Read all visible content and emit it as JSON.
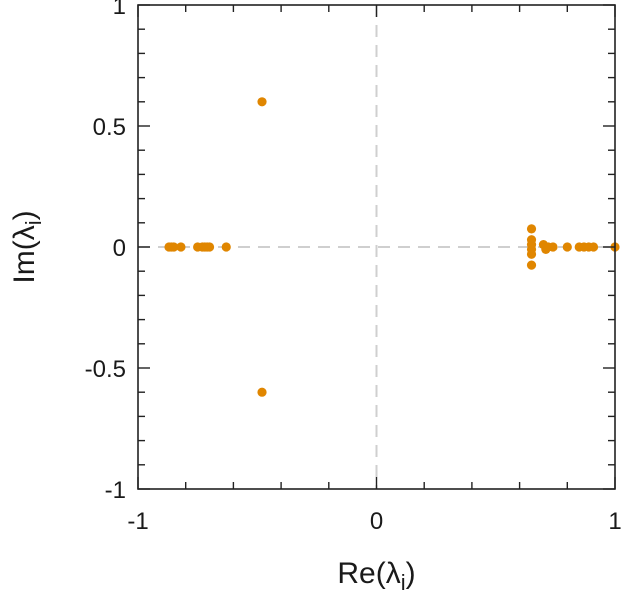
{
  "chart_data": {
    "type": "scatter",
    "title": "",
    "xlabel": "Re(λ",
    "xlabel_sub": "i",
    "ylabel": "Im(λ",
    "ylabel_sub": "i",
    "xlim": [
      -1.0,
      1.0
    ],
    "ylim": [
      -1.0,
      1.0
    ],
    "xticks": [
      -1,
      0,
      1
    ],
    "xtick_labels": [
      "-1",
      "0",
      "1"
    ],
    "yticks": [
      -1,
      -0.5,
      0,
      0.5,
      1
    ],
    "ytick_labels": [
      "-1",
      "-0.5",
      "0",
      "0.5",
      "1"
    ],
    "grid": false,
    "zero_lines": "dashed",
    "marker_color": "#e08600",
    "points": [
      {
        "x": -0.87,
        "y": 0.0
      },
      {
        "x": -0.86,
        "y": 0.0
      },
      {
        "x": -0.85,
        "y": 0.0
      },
      {
        "x": -0.82,
        "y": 0.0
      },
      {
        "x": -0.75,
        "y": 0.0
      },
      {
        "x": -0.73,
        "y": 0.0
      },
      {
        "x": -0.72,
        "y": 0.0
      },
      {
        "x": -0.71,
        "y": 0.0
      },
      {
        "x": -0.7,
        "y": 0.0
      },
      {
        "x": -0.63,
        "y": 0.0
      },
      {
        "x": -0.48,
        "y": 0.6
      },
      {
        "x": -0.48,
        "y": -0.6
      },
      {
        "x": 0.65,
        "y": 0.075
      },
      {
        "x": 0.65,
        "y": 0.03
      },
      {
        "x": 0.65,
        "y": 0.01
      },
      {
        "x": 0.65,
        "y": -0.01
      },
      {
        "x": 0.65,
        "y": -0.03
      },
      {
        "x": 0.65,
        "y": -0.075
      },
      {
        "x": 0.7,
        "y": 0.01
      },
      {
        "x": 0.71,
        "y": -0.01
      },
      {
        "x": 0.72,
        "y": 0.0
      },
      {
        "x": 0.74,
        "y": 0.0
      },
      {
        "x": 0.8,
        "y": 0.0
      },
      {
        "x": 0.85,
        "y": 0.0
      },
      {
        "x": 0.87,
        "y": 0.0
      },
      {
        "x": 0.89,
        "y": 0.0
      },
      {
        "x": 0.91,
        "y": 0.0
      },
      {
        "x": 1.0,
        "y": 0.0
      }
    ]
  }
}
